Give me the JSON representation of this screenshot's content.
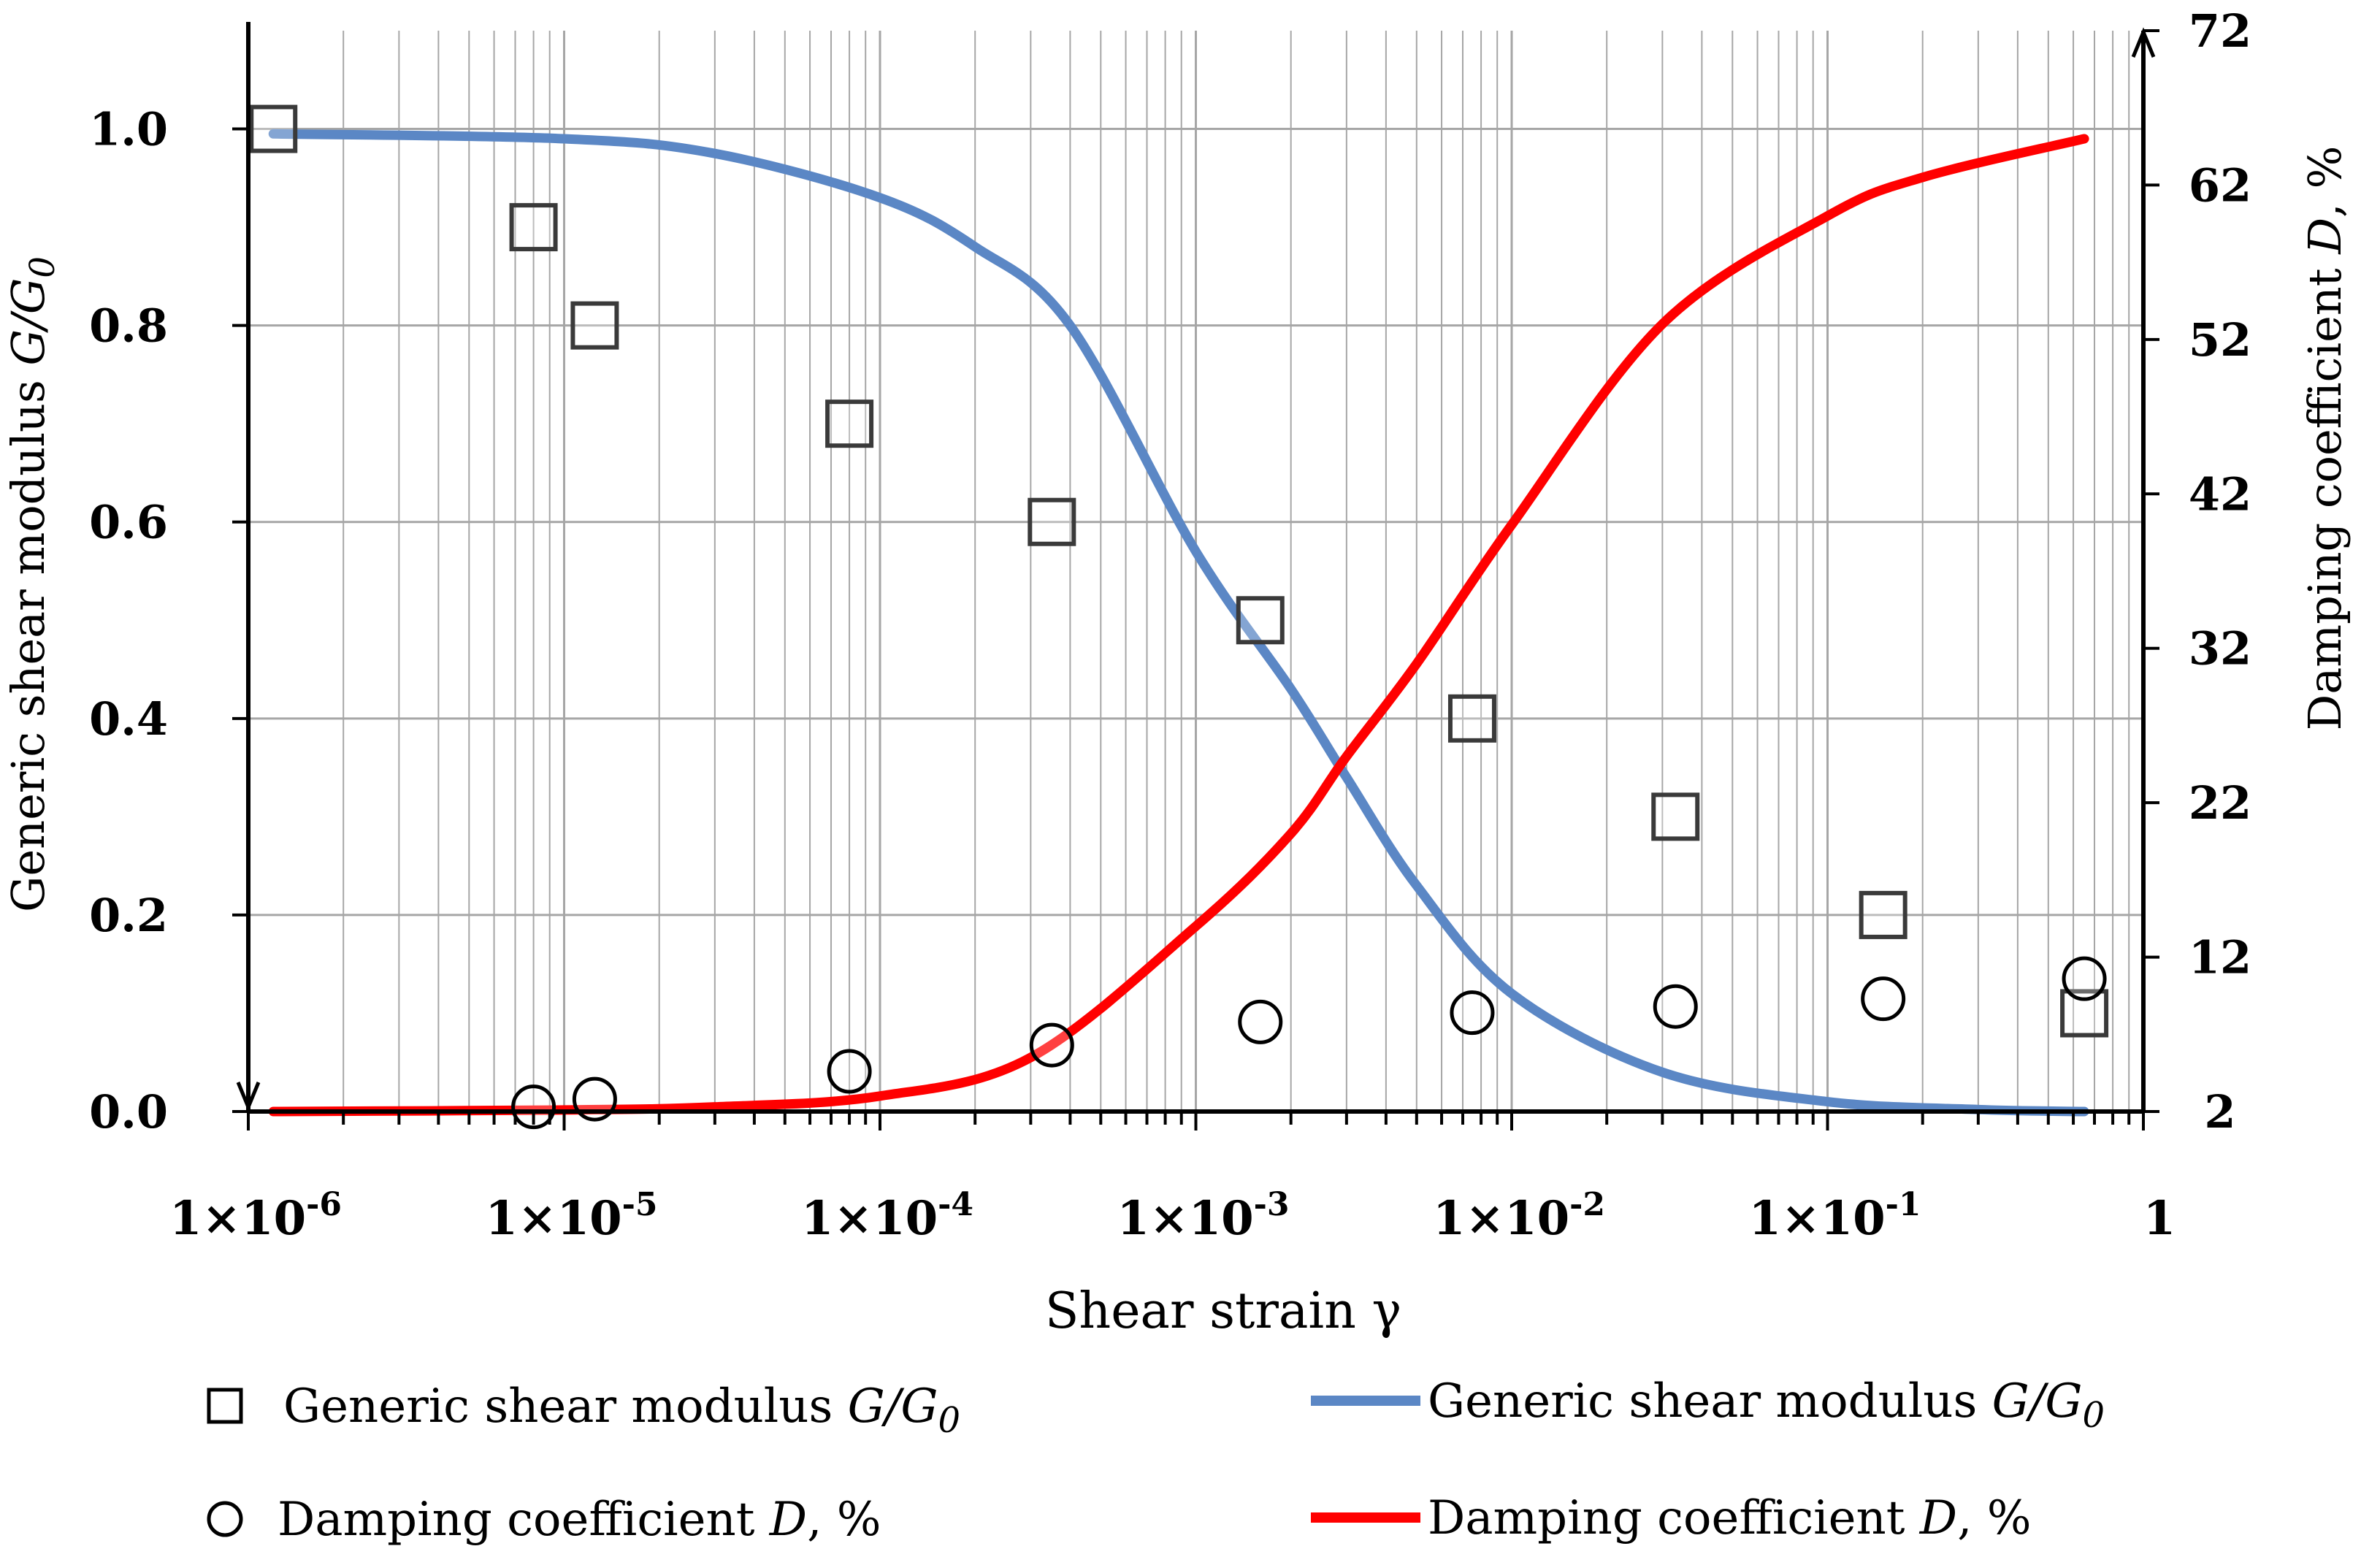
{
  "chart_data": {
    "type": "scatter",
    "title": "",
    "xlabel": "Shear strain γ",
    "ylabel_left": "Generic shear modulus G/G0",
    "ylabel_right": "Damping coefficient D, %",
    "x_scale": "log",
    "xlim": [
      1e-06,
      1
    ],
    "ylim_left": [
      0,
      1.1
    ],
    "ylim_right": [
      2,
      72
    ],
    "grid": true,
    "legend_position": "bottom",
    "x_tick_values": [
      1e-06,
      1e-05,
      0.0001,
      0.001,
      0.01,
      0.1,
      1
    ],
    "x_tick_labels": [
      {
        "base": "1×10",
        "exp": "-6"
      },
      {
        "base": "1×10",
        "exp": "-5"
      },
      {
        "base": "1×10",
        "exp": "-4"
      },
      {
        "base": "1×10",
        "exp": "-3"
      },
      {
        "base": "1×10",
        "exp": "-2"
      },
      {
        "base": "1×10",
        "exp": "-1"
      },
      {
        "base": "1",
        "exp": ""
      }
    ],
    "y_left_ticks": [
      0.0,
      0.2,
      0.4,
      0.6,
      0.8,
      1.0
    ],
    "y_left_tick_labels": [
      "0.0",
      "0.2",
      "0.4",
      "0.6",
      "0.8",
      "1.0"
    ],
    "y_right_ticks": [
      2,
      12,
      22,
      32,
      42,
      52,
      62,
      72
    ],
    "y_right_tick_labels": [
      "2",
      "12",
      "22",
      "32",
      "42",
      "52",
      "62",
      "72"
    ],
    "series": [
      {
        "name": "Generic shear modulus G/G0",
        "kind": "markers",
        "marker": "square",
        "axis": "left",
        "color": "#000000",
        "x": [
          1.2e-06,
          8e-06,
          1.25e-05,
          8e-05,
          0.00035,
          0.0016,
          0.0075,
          0.033,
          0.15,
          0.65
        ],
        "y": [
          1.0,
          0.9,
          0.8,
          0.7,
          0.6,
          0.5,
          0.4,
          0.3,
          0.2,
          0.1
        ]
      },
      {
        "name": "Damping coefficient D, %",
        "kind": "markers",
        "marker": "circle",
        "axis": "right",
        "color": "#000000",
        "x": [
          8e-06,
          1.25e-05,
          8e-05,
          0.00035,
          0.0016,
          0.0075,
          0.033,
          0.15,
          0.65
        ],
        "y": [
          2.3,
          2.8,
          4.6,
          6.3,
          7.8,
          8.4,
          8.8,
          9.3,
          10.6
        ]
      },
      {
        "name": "Generic shear modulus G/G0",
        "kind": "line",
        "axis": "left",
        "color": "#5b87c5",
        "x": [
          1.2e-06,
          1e-05,
          3e-05,
          0.0001,
          0.0002,
          0.0004,
          0.001,
          0.002,
          0.003,
          0.005,
          0.01,
          0.03,
          0.1,
          0.3,
          0.65
        ],
        "y": [
          0.995,
          0.99,
          0.975,
          0.93,
          0.88,
          0.8,
          0.57,
          0.43,
          0.34,
          0.23,
          0.12,
          0.04,
          0.01,
          0.002,
          0.0
        ]
      },
      {
        "name": "Damping coefficient D, %",
        "kind": "line",
        "axis": "right",
        "color": "#ff0000",
        "x": [
          1.2e-06,
          1e-05,
          3e-05,
          0.0001,
          0.0003,
          0.001,
          0.002,
          0.003,
          0.005,
          0.01,
          0.03,
          0.1,
          0.2,
          0.65
        ],
        "y": [
          2,
          2.1,
          2.3,
          3.0,
          5.5,
          14,
          20,
          25,
          31,
          40,
          53,
          60,
          62.5,
          65
        ]
      }
    ],
    "legend": [
      {
        "marker": "square",
        "label": "Generic shear modulus ",
        "italic": "G/G",
        "sub": "0"
      },
      {
        "marker": "circle",
        "label": "Damping coefficient ",
        "italic": "D",
        "suffix": ", %"
      },
      {
        "marker": "line",
        "color": "#5b87c5",
        "label": "Generic shear modulus ",
        "italic": "G/G",
        "sub": "0"
      },
      {
        "marker": "line",
        "color": "#ff0000",
        "label": "Damping coefficient ",
        "italic": "D",
        "suffix": ", %"
      }
    ]
  }
}
